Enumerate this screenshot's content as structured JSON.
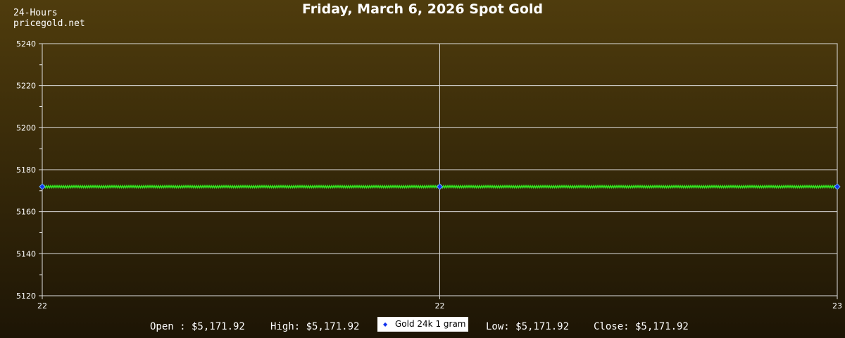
{
  "header": {
    "period": "24-Hours",
    "site": "pricegold.net"
  },
  "chart_data": {
    "type": "line",
    "title": "Friday, March 6, 2026 Spot Gold",
    "ylim": [
      5120,
      5240
    ],
    "yticks": [
      "5120",
      "5140",
      "5160",
      "5180",
      "5200",
      "5220",
      "5240"
    ],
    "xticks": [
      "22",
      "22",
      "23"
    ],
    "grid": true,
    "legend_placement": "bottom-center",
    "series": [
      {
        "name": "Gold 24k 1 gram",
        "value": 5171.92,
        "line_color": "#33ee22",
        "marker_color": "#1133ee"
      }
    ]
  },
  "stats": {
    "open": "Open : $5,171.92",
    "high": "High: $5,171.92",
    "low": "Low: $5,171.92",
    "close": "Close: $5,171.92"
  }
}
